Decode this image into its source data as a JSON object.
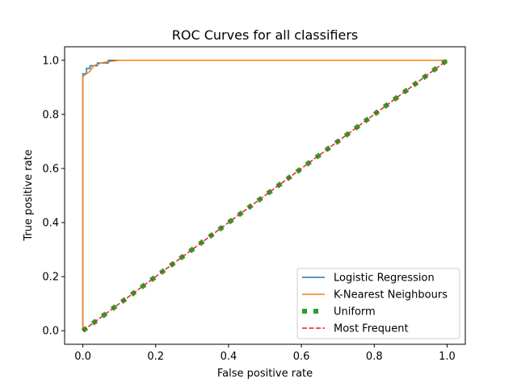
{
  "chart_data": {
    "type": "line",
    "title": "ROC Curves for all classifiers",
    "xlabel": "False positive rate",
    "ylabel": "True positive rate",
    "xlim": [
      -0.05,
      1.05
    ],
    "ylim": [
      -0.05,
      1.05
    ],
    "xticks": [
      0.0,
      0.2,
      0.4,
      0.6,
      0.8,
      1.0
    ],
    "xtick_labels": [
      "0.0",
      "0.2",
      "0.4",
      "0.6",
      "0.8",
      "1.0"
    ],
    "yticks": [
      0.0,
      0.2,
      0.4,
      0.6,
      0.8,
      1.0
    ],
    "ytick_labels": [
      "0.0",
      "0.2",
      "0.4",
      "0.6",
      "0.8",
      "1.0"
    ],
    "grid": false,
    "legend_position": "lower-right",
    "series": [
      {
        "name": "Logistic Regression",
        "color": "#1f77b4",
        "style": "solid",
        "x": [
          0.0,
          0.0,
          0.0,
          0.01,
          0.01,
          0.02,
          0.02,
          0.04,
          0.04,
          0.06,
          0.07,
          0.07,
          0.09,
          1.0
        ],
        "y": [
          0.0,
          0.6,
          0.95,
          0.95,
          0.97,
          0.97,
          0.98,
          0.98,
          0.99,
          0.99,
          0.99,
          1.0,
          1.0,
          1.0
        ]
      },
      {
        "name": "K-Nearest Neighbours",
        "color": "#ff7f0e",
        "style": "solid",
        "x": [
          0.0,
          0.0,
          0.0,
          0.01,
          0.02,
          0.03,
          0.05,
          0.07,
          0.1,
          1.0
        ],
        "y": [
          0.0,
          0.5,
          0.94,
          0.95,
          0.96,
          0.98,
          0.99,
          0.995,
          1.0,
          1.0
        ]
      },
      {
        "name": "Uniform",
        "color": "#2ca02c",
        "style": "dotted-thick",
        "x": [
          0.0,
          1.0
        ],
        "y": [
          0.0,
          1.0
        ]
      },
      {
        "name": "Most Frequent",
        "color": "#d62728",
        "style": "dashed",
        "x": [
          0.0,
          1.0
        ],
        "y": [
          0.0,
          1.0
        ]
      }
    ]
  }
}
